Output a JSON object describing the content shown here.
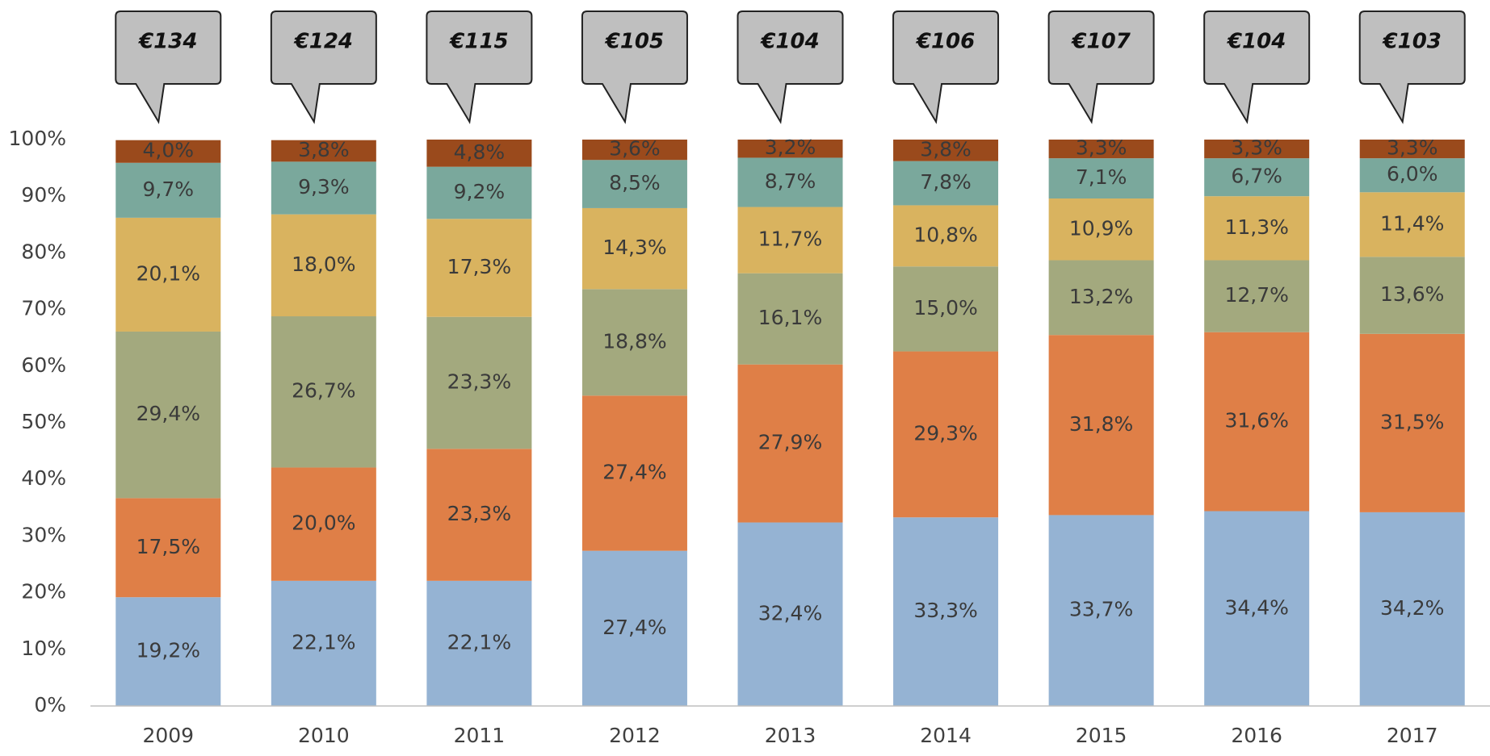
{
  "chart_data": {
    "type": "stacked_bar",
    "categories": [
      "2009",
      "2010",
      "2011",
      "2012",
      "2013",
      "2014",
      "2015",
      "2016",
      "2017"
    ],
    "annotations": [
      "€134",
      "€124",
      "€115",
      "€105",
      "€104",
      "€106",
      "€107",
      "€104",
      "€103"
    ],
    "series": [
      {
        "color": "#95b3d3",
        "values": [
          19.2,
          22.1,
          22.1,
          27.4,
          32.4,
          33.3,
          33.7,
          34.4,
          34.2
        ],
        "value_labels": [
          "19,2%",
          "22,1%",
          "22,1%",
          "27,4%",
          "32,4%",
          "33,3%",
          "33,7%",
          "34,4%",
          "34,2%"
        ]
      },
      {
        "color": "#df7f47",
        "values": [
          17.5,
          20.0,
          23.3,
          27.4,
          27.9,
          29.3,
          31.8,
          31.6,
          31.5
        ],
        "value_labels": [
          "17,5%",
          "20,0%",
          "23,3%",
          "27,4%",
          "27,9%",
          "29,3%",
          "31,8%",
          "31,6%",
          "31,5%"
        ]
      },
      {
        "color": "#a3a97e",
        "values": [
          29.4,
          26.7,
          23.3,
          18.8,
          16.1,
          15.0,
          13.2,
          12.7,
          13.6
        ],
        "value_labels": [
          "29,4%",
          "26,7%",
          "23,3%",
          "18,8%",
          "16,1%",
          "15,0%",
          "13,2%",
          "12,7%",
          "13,6%"
        ]
      },
      {
        "color": "#d9b35f",
        "values": [
          20.1,
          18.0,
          17.3,
          14.3,
          11.7,
          10.8,
          10.9,
          11.3,
          11.4
        ],
        "value_labels": [
          "20,1%",
          "18,0%",
          "17,3%",
          "14,3%",
          "11,7%",
          "10,8%",
          "10,9%",
          "11,3%",
          "11,4%"
        ]
      },
      {
        "color": "#7aa89c",
        "values": [
          9.7,
          9.3,
          9.2,
          8.5,
          8.7,
          7.8,
          7.1,
          6.7,
          6.0
        ],
        "value_labels": [
          "9,7%",
          "9,3%",
          "9,2%",
          "8,5%",
          "8,7%",
          "7,8%",
          "7,1%",
          "6,7%",
          "6,0%"
        ]
      },
      {
        "color": "#9a4a1c",
        "values": [
          4.0,
          3.8,
          4.8,
          3.6,
          3.2,
          3.8,
          3.3,
          3.3,
          3.3
        ],
        "value_labels": [
          "4,0%",
          "3,8%",
          "4,8%",
          "3,6%",
          "3,2%",
          "3,8%",
          "3,3%",
          "3,3%",
          "3,3%"
        ]
      }
    ],
    "ylim": [
      0,
      100
    ],
    "yticks": [
      {
        "value": 0,
        "label": "0%"
      },
      {
        "value": 10,
        "label": "10%"
      },
      {
        "value": 20,
        "label": "20%"
      },
      {
        "value": 30,
        "label": "30%"
      },
      {
        "value": 40,
        "label": "40%"
      },
      {
        "value": 50,
        "label": "50%"
      },
      {
        "value": 60,
        "label": "60%"
      },
      {
        "value": 70,
        "label": "70%"
      },
      {
        "value": 80,
        "label": "80%"
      },
      {
        "value": 90,
        "label": "90%"
      },
      {
        "value": 100,
        "label": "100%"
      }
    ],
    "grid": false
  }
}
